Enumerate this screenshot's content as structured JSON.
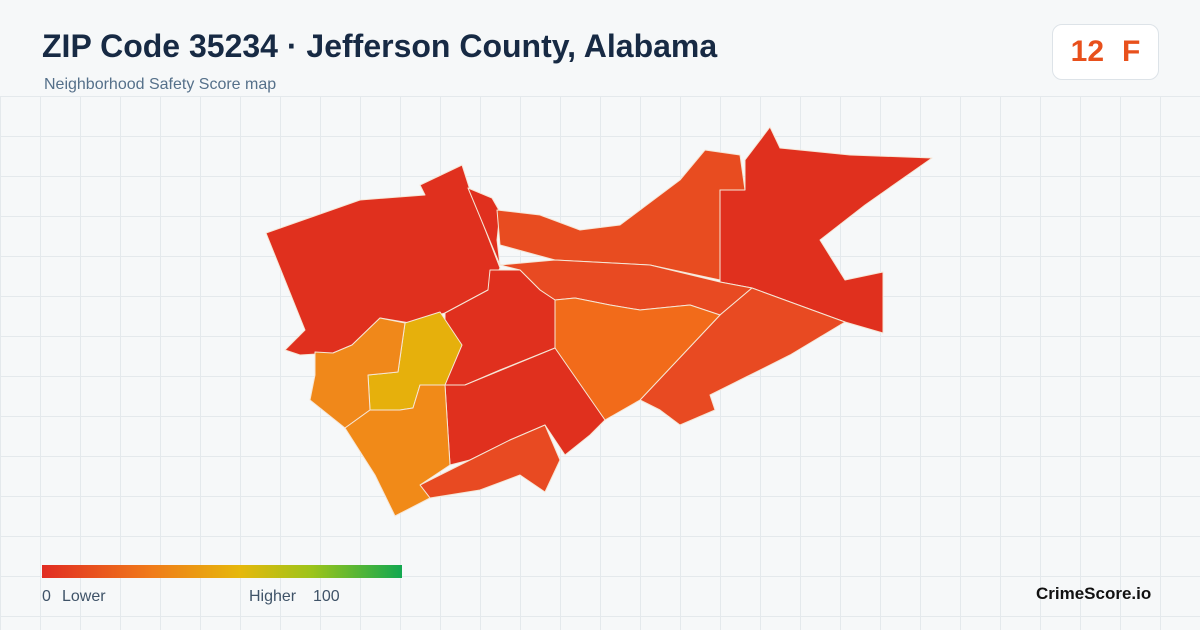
{
  "header": {
    "title": "ZIP Code 35234 · Jefferson County, Alabama",
    "subtitle": "Neighborhood Safety Score map"
  },
  "score": {
    "value": 12,
    "grade": "F"
  },
  "legend": {
    "min": 0,
    "min_label": "Lower",
    "max_label": "Higher",
    "max": 100
  },
  "brand": "CrimeScore.io"
}
